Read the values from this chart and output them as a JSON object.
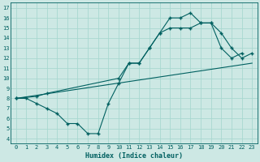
{
  "xlabel": "Humidex (Indice chaleur)",
  "bg_color": "#cde8e4",
  "line_color": "#006060",
  "grid_color": "#a8d8d0",
  "xlim": [
    -0.5,
    23.5
  ],
  "ylim": [
    3.5,
    17.5
  ],
  "xticks": [
    0,
    1,
    2,
    3,
    4,
    5,
    6,
    7,
    8,
    9,
    10,
    11,
    12,
    13,
    14,
    15,
    16,
    17,
    18,
    19,
    20,
    21,
    22,
    23
  ],
  "yticks": [
    4,
    5,
    6,
    7,
    8,
    9,
    10,
    11,
    12,
    13,
    14,
    15,
    16,
    17
  ],
  "line1_x": [
    0,
    1,
    2,
    3,
    4,
    5,
    6,
    7,
    8,
    9,
    10,
    11,
    12,
    13,
    14,
    15,
    16,
    17,
    18,
    19,
    20,
    21,
    22
  ],
  "line1_y": [
    8,
    8,
    7.5,
    7,
    6.5,
    5.5,
    5.5,
    4.5,
    4.5,
    7.5,
    9.5,
    11.5,
    11.5,
    13,
    14.5,
    16,
    16,
    16.5,
    15.5,
    15.5,
    13,
    12,
    12.5
  ],
  "line2_x": [
    0,
    2,
    3,
    10,
    11,
    12,
    13,
    14,
    15,
    16,
    17,
    18,
    19,
    20,
    21,
    22,
    23
  ],
  "line2_y": [
    8,
    8.2,
    8.5,
    10,
    11.5,
    11.5,
    13,
    14.5,
    15,
    15,
    15,
    15.5,
    15.5,
    14.5,
    13,
    12,
    12.5
  ],
  "line3_x": [
    0,
    23
  ],
  "line3_y": [
    8,
    11.5
  ]
}
